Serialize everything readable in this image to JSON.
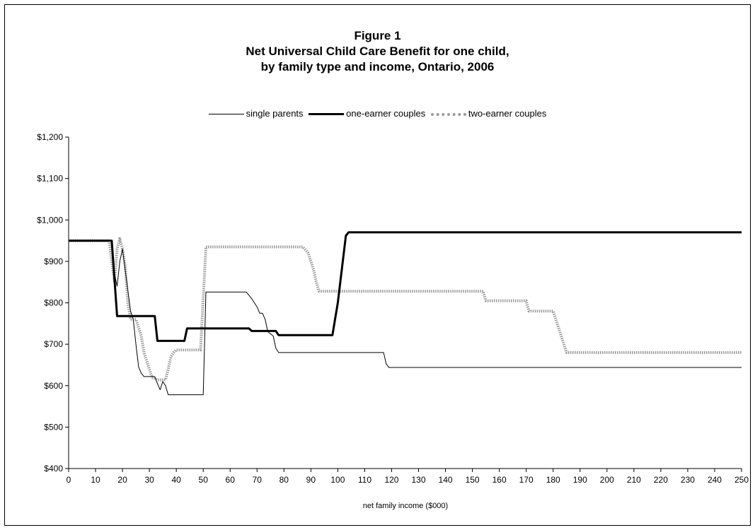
{
  "chart_data": {
    "type": "line",
    "title": "Figure 1",
    "subtitle_lines": [
      "Net Universal Child Care Benefit for one child,",
      "by family type and income, Ontario, 2006"
    ],
    "xlabel": "net family income ($000)",
    "ylabel": "",
    "xlim": [
      0,
      250
    ],
    "ylim": [
      400,
      1200
    ],
    "x_ticks": [
      "0",
      "10",
      "20",
      "30",
      "40",
      "50",
      "60",
      "70",
      "80",
      "90",
      "100",
      "110",
      "120",
      "130",
      "140",
      "150",
      "160",
      "170",
      "180",
      "190",
      "200",
      "210",
      "220",
      "230",
      "240",
      "250"
    ],
    "y_ticks": [
      "$1,200",
      "$1,100",
      "$1,000",
      "$900",
      "$800",
      "$700",
      "$600",
      "$500",
      "$400"
    ],
    "legend_position": "top-center",
    "grid": false,
    "series": [
      {
        "name": "single parents",
        "style": "thin",
        "color": "#000000",
        "points": [
          [
            0,
            950
          ],
          [
            16,
            950
          ],
          [
            17,
            870
          ],
          [
            18,
            840
          ],
          [
            19,
            900
          ],
          [
            20,
            930
          ],
          [
            21,
            880
          ],
          [
            22,
            830
          ],
          [
            23,
            780
          ],
          [
            24,
            760
          ],
          [
            25,
            700
          ],
          [
            26,
            645
          ],
          [
            27,
            630
          ],
          [
            28,
            622
          ],
          [
            32,
            622
          ],
          [
            33,
            605
          ],
          [
            34,
            590
          ],
          [
            35,
            610
          ],
          [
            36,
            600
          ],
          [
            37,
            578
          ],
          [
            50,
            578
          ],
          [
            51,
            826
          ],
          [
            66,
            826
          ],
          [
            68,
            810
          ],
          [
            70,
            790
          ],
          [
            71,
            775
          ],
          [
            72,
            775
          ],
          [
            73,
            760
          ],
          [
            74,
            730
          ],
          [
            76,
            720
          ],
          [
            77,
            690
          ],
          [
            78,
            680
          ],
          [
            117,
            680
          ],
          [
            118,
            652
          ],
          [
            119,
            644
          ],
          [
            250,
            644
          ]
        ]
      },
      {
        "name": "one-earner couples",
        "style": "thick",
        "color": "#000000",
        "points": [
          [
            0,
            950
          ],
          [
            16,
            950
          ],
          [
            18,
            768
          ],
          [
            32,
            768
          ],
          [
            33,
            708
          ],
          [
            43,
            708
          ],
          [
            44,
            738
          ],
          [
            67,
            738
          ],
          [
            68,
            732
          ],
          [
            77,
            732
          ],
          [
            78,
            722
          ],
          [
            98,
            722
          ],
          [
            100,
            800
          ],
          [
            103,
            962
          ],
          [
            104,
            970
          ],
          [
            250,
            970
          ]
        ]
      },
      {
        "name": "two-earner couples",
        "style": "dotted",
        "color": "#9a9a9a",
        "points": [
          [
            0,
            950
          ],
          [
            15,
            950
          ],
          [
            16,
            900
          ],
          [
            17,
            850
          ],
          [
            18,
            930
          ],
          [
            19,
            955
          ],
          [
            20,
            930
          ],
          [
            21,
            890
          ],
          [
            22,
            800
          ],
          [
            23,
            760
          ],
          [
            25,
            760
          ],
          [
            26,
            740
          ],
          [
            27,
            720
          ],
          [
            28,
            680
          ],
          [
            29,
            660
          ],
          [
            30,
            640
          ],
          [
            31,
            620
          ],
          [
            33,
            614
          ],
          [
            36,
            614
          ],
          [
            37,
            640
          ],
          [
            38,
            670
          ],
          [
            39,
            680
          ],
          [
            40,
            686
          ],
          [
            49,
            686
          ],
          [
            50,
            810
          ],
          [
            51,
            935
          ],
          [
            87,
            935
          ],
          [
            89,
            920
          ],
          [
            90,
            900
          ],
          [
            91,
            880
          ],
          [
            92,
            850
          ],
          [
            93,
            828
          ],
          [
            154,
            828
          ],
          [
            155,
            805
          ],
          [
            170,
            805
          ],
          [
            171,
            780
          ],
          [
            180,
            780
          ],
          [
            182,
            740
          ],
          [
            184,
            700
          ],
          [
            185,
            680
          ],
          [
            250,
            680
          ]
        ]
      }
    ]
  }
}
